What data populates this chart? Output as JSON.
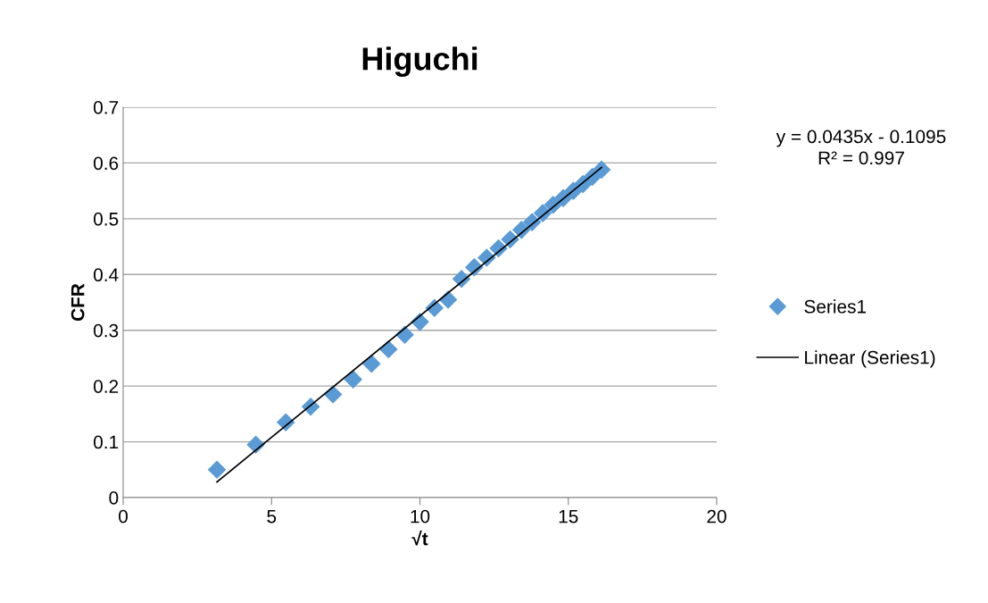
{
  "chart_data": {
    "type": "scatter",
    "title": "Higuchi",
    "xlabel": "√t",
    "ylabel": "CFR",
    "xlim": [
      0,
      20
    ],
    "xticks": [
      0,
      5,
      10,
      15,
      20
    ],
    "ylim": [
      0,
      0.7
    ],
    "yticks": [
      0,
      0.1,
      0.2,
      0.3,
      0.4,
      0.5,
      0.6,
      0.7
    ],
    "grid": "y",
    "legend": "right",
    "annotations": [
      "y = 0.0435x - 0.1095\nR² = 0.997"
    ],
    "series": [
      {
        "name": "Series1",
        "marker": "diamond",
        "color": "#5b9bd5",
        "x": [
          3.16,
          4.47,
          5.48,
          6.32,
          7.07,
          7.75,
          8.37,
          8.94,
          9.49,
          10.0,
          10.49,
          10.95,
          11.4,
          11.83,
          12.25,
          12.65,
          13.04,
          13.42,
          13.78,
          14.14,
          14.49,
          14.83,
          15.17,
          15.49,
          15.81,
          16.12
        ],
        "values": [
          0.05,
          0.095,
          0.135,
          0.163,
          0.185,
          0.212,
          0.24,
          0.266,
          0.292,
          0.315,
          0.34,
          0.355,
          0.392,
          0.413,
          0.43,
          0.447,
          0.463,
          0.48,
          0.494,
          0.51,
          0.525,
          0.537,
          0.55,
          0.562,
          0.575,
          0.588
        ]
      },
      {
        "name": "Linear (Series1)",
        "type": "line",
        "marker": "none",
        "color": "#000000",
        "x": [
          3.16,
          16.12
        ],
        "values": [
          0.028,
          0.592
        ]
      }
    ]
  }
}
